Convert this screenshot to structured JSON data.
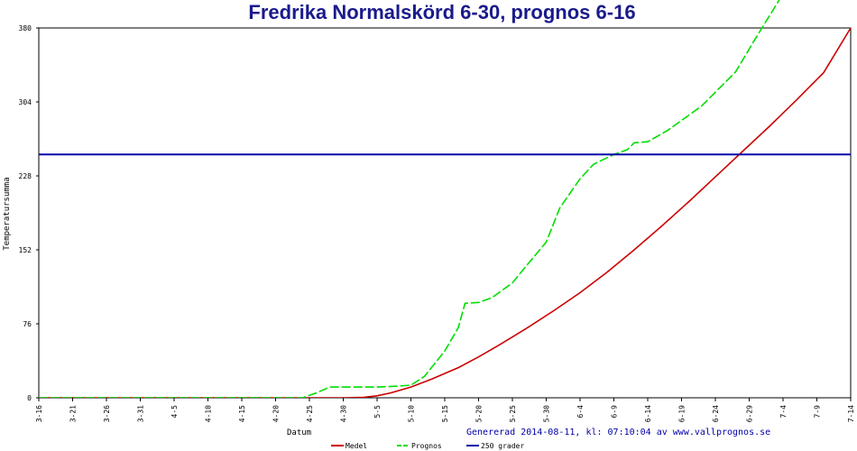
{
  "chart_data": {
    "type": "line",
    "title": "Fredrika Normalskörd 6-30, prognos 6-16",
    "xlabel": "Datum",
    "ylabel": "Temperatursumma",
    "ylim": [
      0,
      380
    ],
    "yticks": [
      0,
      76,
      152,
      228,
      304,
      380
    ],
    "x_ticks": [
      "3-16",
      "3-21",
      "3-26",
      "3-31",
      "4-5",
      "4-10",
      "4-15",
      "4-20",
      "4-25",
      "4-30",
      "5-5",
      "5-10",
      "5-15",
      "5-20",
      "5-25",
      "5-30",
      "6-4",
      "6-9",
      "6-14",
      "6-19",
      "6-24",
      "6-29",
      "7-4",
      "7-9",
      "7-14"
    ],
    "x_day_range": [
      0,
      120
    ],
    "grid": false,
    "legend_placement": "bottom",
    "footer_text": "Genererad 2014-08-11, kl: 07:10:04 av www.vallprognos.se",
    "series": [
      {
        "name": "Medel",
        "color": "#cc0000",
        "style": "solid",
        "x": [
          0,
          35,
          40,
          45,
          48,
          50,
          52,
          55,
          58,
          62,
          65,
          68,
          72,
          76,
          80,
          84,
          88,
          92,
          96,
          100,
          104,
          108,
          112,
          116,
          120
        ],
        "y": [
          0,
          0,
          0,
          0,
          0.5,
          2,
          5,
          11,
          19,
          31,
          42,
          54,
          71,
          89,
          108,
          129,
          152,
          176,
          201,
          227,
          253,
          279,
          306,
          334,
          380
        ]
      },
      {
        "name": "Prognos",
        "color": "#00dd00",
        "style": "dashed",
        "x": [
          0,
          39,
          41,
          43,
          45,
          50,
          53,
          55,
          57,
          60,
          62,
          63,
          65,
          67,
          70,
          72,
          75,
          77,
          80,
          82,
          85,
          87,
          88,
          90,
          93,
          96,
          98,
          100,
          103,
          106,
          110,
          112
        ],
        "y": [
          0,
          0,
          5,
          11,
          11,
          11,
          12,
          13,
          22,
          48,
          72,
          97,
          98,
          103,
          118,
          135,
          160,
          195,
          225,
          240,
          250,
          255,
          262,
          263,
          275,
          290,
          300,
          314,
          335,
          370,
          415,
          440
        ]
      },
      {
        "name": "250 grader",
        "color": "#0000aa",
        "style": "solid",
        "x": [
          0,
          120
        ],
        "y": [
          250,
          250
        ]
      }
    ]
  }
}
